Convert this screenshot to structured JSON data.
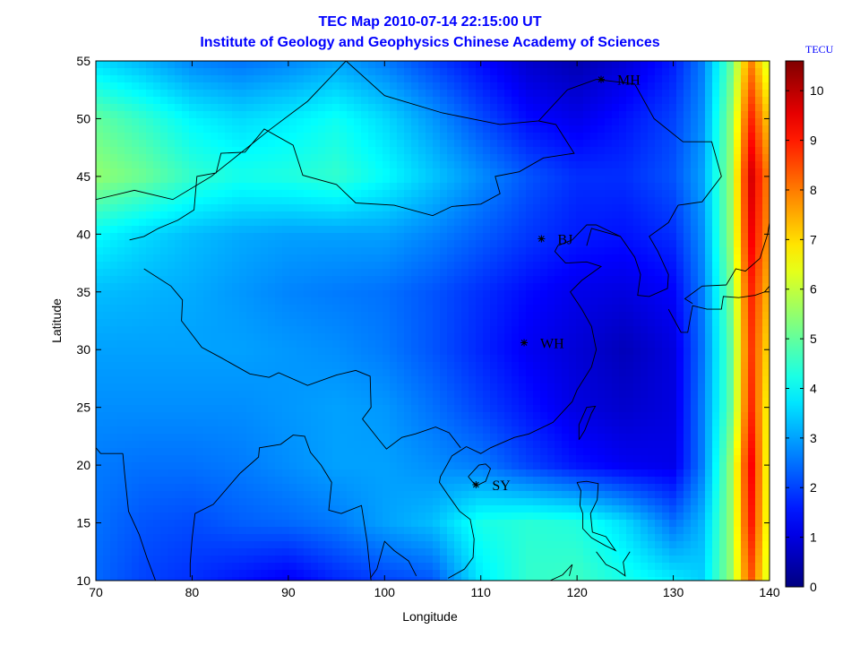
{
  "chart_data": {
    "type": "heatmap",
    "title": "TEC Map 2010-07-14 22:15:00 UT",
    "subtitle": "Institute of Geology and Geophysics Chinese Academy of Sciences",
    "xlabel": "Longitude",
    "ylabel": "Latitude",
    "xlim": [
      70,
      140
    ],
    "ylim": [
      10,
      55
    ],
    "xticks": [
      70,
      80,
      90,
      100,
      110,
      120,
      130,
      140
    ],
    "yticks": [
      10,
      15,
      20,
      25,
      30,
      35,
      40,
      45,
      50,
      55
    ],
    "colorbar": {
      "label": "TECU",
      "range": [
        0,
        10.6
      ],
      "ticks": [
        0,
        1,
        2,
        3,
        4,
        5,
        6,
        7,
        8,
        9,
        10
      ],
      "colormap": "jet"
    },
    "stations": [
      {
        "name": "MH",
        "lon": 122.5,
        "lat": 53.4
      },
      {
        "name": "BJ",
        "lon": 116.3,
        "lat": 39.6
      },
      {
        "name": "WH",
        "lon": 114.5,
        "lat": 30.6
      },
      {
        "name": "SY",
        "lon": 109.5,
        "lat": 18.3
      }
    ],
    "field_estimate": {
      "lon": [
        70,
        75,
        80,
        85,
        90,
        95,
        100,
        105,
        110,
        115,
        120,
        125,
        130,
        133,
        136,
        138,
        140
      ],
      "lat": [
        10,
        15,
        20,
        25,
        30,
        35,
        40,
        45,
        50,
        55
      ],
      "tec": [
        [
          2.4,
          2.0,
          1.8,
          1.5,
          1.2,
          1.7,
          2.0,
          2.2,
          3.8,
          4.5,
          4.6,
          4.2,
          3.8,
          3.5,
          5.5,
          8.5,
          6.0
        ],
        [
          2.5,
          2.2,
          2.1,
          2.3,
          2.4,
          2.6,
          3.0,
          3.3,
          4.2,
          4.4,
          4.3,
          3.6,
          2.5,
          3.2,
          5.5,
          9.2,
          6.2
        ],
        [
          2.6,
          2.5,
          2.5,
          2.6,
          2.8,
          3.0,
          3.0,
          2.8,
          2.6,
          2.0,
          1.5,
          1.2,
          1.1,
          2.6,
          5.5,
          9.5,
          6.2
        ],
        [
          2.8,
          2.8,
          2.8,
          2.8,
          2.9,
          3.0,
          2.9,
          2.5,
          2.0,
          1.5,
          1.0,
          0.8,
          1.0,
          2.6,
          5.0,
          9.0,
          6.4
        ],
        [
          3.0,
          3.0,
          3.0,
          3.0,
          2.9,
          2.8,
          2.6,
          2.2,
          1.7,
          1.2,
          0.9,
          0.6,
          1.0,
          2.5,
          5.0,
          8.8,
          6.8
        ],
        [
          3.3,
          3.2,
          3.1,
          2.9,
          2.7,
          2.6,
          2.5,
          2.2,
          1.8,
          1.4,
          1.1,
          1.0,
          1.3,
          2.6,
          5.2,
          9.0,
          7.2
        ],
        [
          4.0,
          3.6,
          3.3,
          3.1,
          3.0,
          3.0,
          3.0,
          2.7,
          2.3,
          1.9,
          1.6,
          1.5,
          1.8,
          2.8,
          5.5,
          9.5,
          7.6
        ],
        [
          5.5,
          5.1,
          4.5,
          4.2,
          4.3,
          4.5,
          4.0,
          3.4,
          2.8,
          2.2,
          1.8,
          1.8,
          2.2,
          3.0,
          5.5,
          9.8,
          7.8
        ],
        [
          5.0,
          4.5,
          3.9,
          3.6,
          3.8,
          4.1,
          3.6,
          2.9,
          2.1,
          1.4,
          1.1,
          1.5,
          2.0,
          2.8,
          5.4,
          9.0,
          7.0
        ],
        [
          3.6,
          3.2,
          2.7,
          2.5,
          2.7,
          3.0,
          2.6,
          2.0,
          1.4,
          0.8,
          0.5,
          0.9,
          1.6,
          2.6,
          5.0,
          8.0,
          6.0
        ]
      ]
    }
  }
}
